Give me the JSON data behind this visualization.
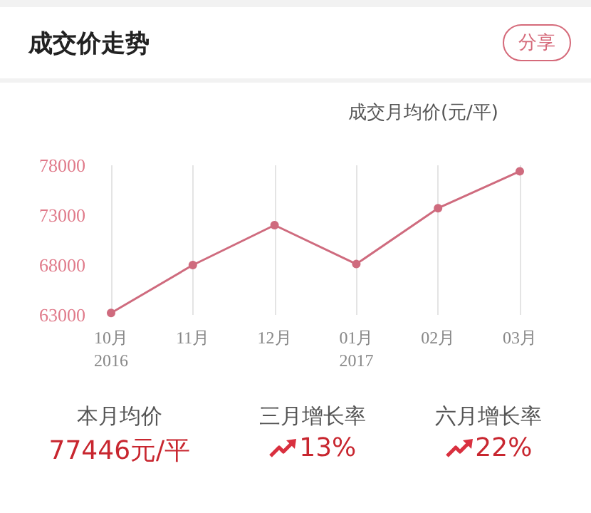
{
  "chart_data": {
    "type": "line",
    "title": "成交价走势",
    "ylabel": "成交月均价(元/平)",
    "categories": [
      "10月\n2016",
      "11月",
      "12月",
      "01月\n2017",
      "02月",
      "03月"
    ],
    "series": [
      {
        "color": "#cf6b7e",
        "values": [
          63200,
          68000,
          72000,
          68100,
          73700,
          77400
        ]
      }
    ],
    "ylim": [
      63000,
      78000
    ],
    "yticks": [
      63000,
      68000,
      73000,
      78000
    ],
    "grid": "x",
    "marker": "circle",
    "line_style": "solid",
    "annotations": [
      "分享",
      "本月均价",
      "77446元/平",
      "三月增长率",
      "13%",
      "六月增长率",
      "22%"
    ]
  }
}
